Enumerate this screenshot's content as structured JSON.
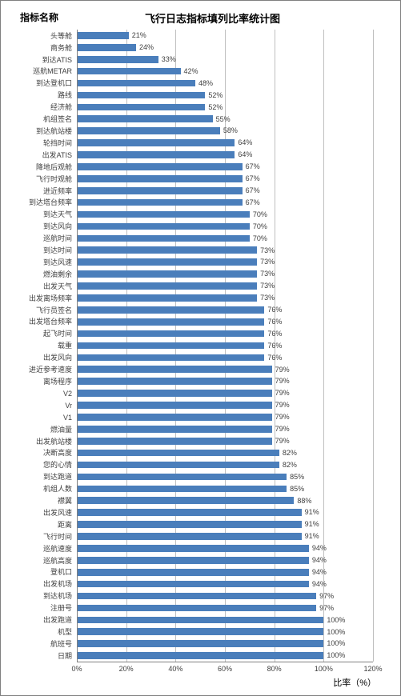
{
  "chart": {
    "type": "bar",
    "orientation": "horizontal",
    "title": "飞行日志指标填列比率统计图",
    "y_axis_title": "指标名称",
    "x_axis_title": "比率（%）",
    "title_fontsize": 13,
    "axis_title_fontsize": 11,
    "tick_fontsize": 9,
    "label_fontsize": 9,
    "bar_color": "#4a7ebb",
    "grid_color": "#bfbfbf",
    "border_color": "#808080",
    "background_color": "#ffffff",
    "text_color": "#404040",
    "xlim": [
      0,
      120
    ],
    "xtick_step": 20,
    "x_ticks": [
      "0%",
      "20%",
      "40%",
      "60%",
      "80%",
      "100%",
      "120%"
    ],
    "categories": [
      "头等舱",
      "商务舱",
      "到达ATIS",
      "巡航METAR",
      "到达登机口",
      "路线",
      "经济舱",
      "机组签名",
      "到达航站楼",
      "轮挡时间",
      "出发ATIS",
      "降地后观舱",
      "飞行时观舱",
      "进近频率",
      "到达塔台频率",
      "到达天气",
      "到达风向",
      "巡航时间",
      "到达时间",
      "到达风速",
      "燃油剩余",
      "出发天气",
      "出发离场频率",
      "飞行员签名",
      "出发塔台频率",
      "起飞时间",
      "载重",
      "出发风向",
      "进近参考速度",
      "离场程序",
      "V2",
      "Vr",
      "V1",
      "燃油量",
      "出发航站楼",
      "决断高度",
      "您的心情",
      "到达跑道",
      "机组人数",
      "襟翼",
      "出发风速",
      "距离",
      "飞行时间",
      "巡航速度",
      "巡航高度",
      "登机口",
      "出发机场",
      "到达机场",
      "注册号",
      "出发跑道",
      "机型",
      "航班号",
      "日期"
    ],
    "values": [
      21,
      24,
      33,
      42,
      48,
      52,
      52,
      55,
      58,
      64,
      64,
      67,
      67,
      67,
      67,
      70,
      70,
      70,
      73,
      73,
      73,
      73,
      73,
      76,
      76,
      76,
      76,
      76,
      79,
      79,
      79,
      79,
      79,
      79,
      79,
      82,
      82,
      85,
      85,
      88,
      91,
      91,
      91,
      94,
      94,
      94,
      94,
      97,
      97,
      100,
      100,
      100,
      100
    ],
    "value_labels": [
      "21%",
      "24%",
      "33%",
      "42%",
      "48%",
      "52%",
      "52%",
      "55%",
      "58%",
      "64%",
      "64%",
      "67%",
      "67%",
      "67%",
      "67%",
      "70%",
      "70%",
      "70%",
      "73%",
      "73%",
      "73%",
      "73%",
      "73%",
      "76%",
      "76%",
      "76%",
      "76%",
      "76%",
      "79%",
      "79%",
      "79%",
      "79%",
      "79%",
      "79%",
      "79%",
      "82%",
      "82%",
      "85%",
      "85%",
      "88%",
      "91%",
      "91%",
      "91%",
      "94%",
      "94%",
      "94%",
      "94%",
      "97%",
      "97%",
      "100%",
      "100%",
      "100%",
      "100%"
    ]
  }
}
